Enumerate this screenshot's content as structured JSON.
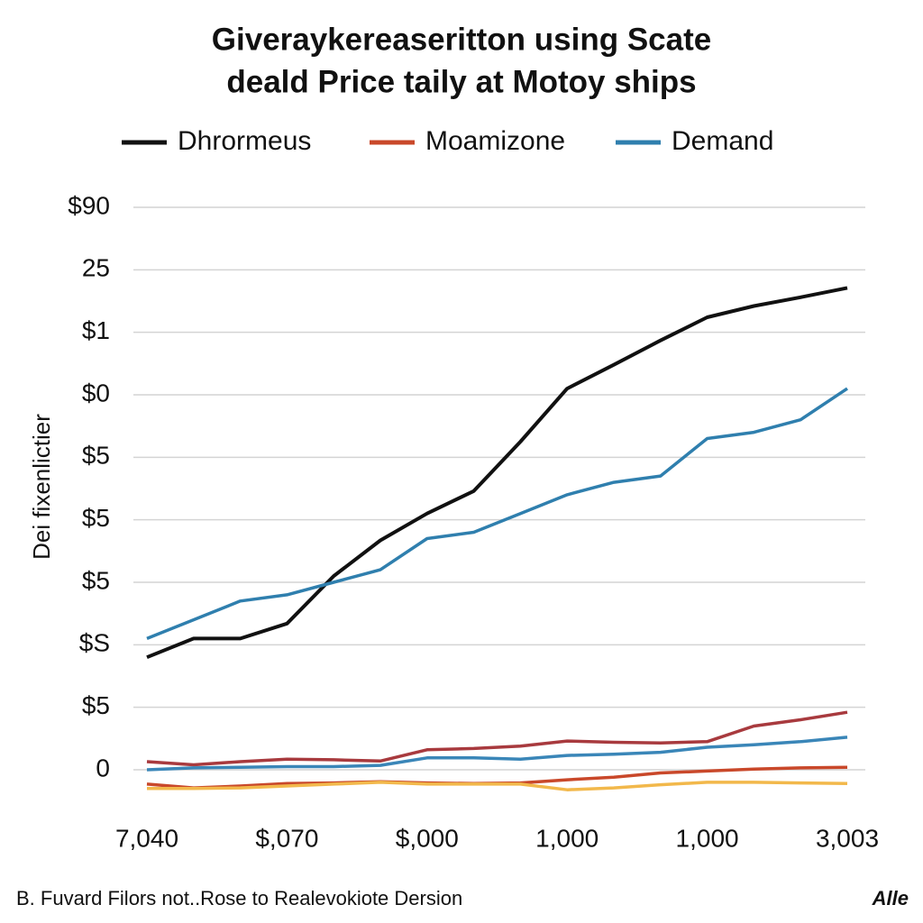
{
  "chart_data": {
    "type": "line",
    "title": [
      "Giveraykereaseritton using Scate",
      "deald Price taily at Motoy ships"
    ],
    "y_label": "Dei fixenlictier",
    "footer": "B. Fuvard Filors not..Rose to Realevokiote Dersion",
    "watermark": "Alle",
    "categories": [
      "7,040",
      null,
      null,
      "$,070",
      null,
      null,
      "$,000",
      null,
      null,
      "1,000",
      null,
      null,
      "1,000",
      null,
      null,
      "3,003"
    ],
    "series": [
      {
        "name": "Dhrormeus",
        "color": "#111111",
        "values": [
          18,
          21,
          21,
          23.4,
          31,
          36.7,
          41,
          44.6,
          52.5,
          61,
          64.8,
          68.7,
          72.4,
          74.2,
          75.6,
          77.1
        ]
      },
      {
        "name": "Moamizone",
        "color": "#c9482a",
        "values": [
          -2.3,
          -2.9,
          -2.6,
          -2.2,
          -2.1,
          -1.9,
          -2.1,
          -2.2,
          -2.1,
          -1.6,
          -1.2,
          -0.5,
          -0.2,
          0.1,
          0.3,
          0.4
        ]
      },
      {
        "name": "Demand",
        "color": "#2f7fae",
        "values": [
          21,
          24,
          27,
          28,
          30,
          32,
          37,
          38,
          41,
          44,
          46,
          47,
          53,
          54,
          56,
          61
        ]
      },
      {
        "color": "#a83a3e",
        "values": [
          1.3,
          0.8,
          1.3,
          1.7,
          1.6,
          1.4,
          3.2,
          3.4,
          3.8,
          4.6,
          4.4,
          4.3,
          4.5,
          7,
          8,
          9.2
        ]
      },
      {
        "color": "#3a86b8",
        "values": [
          0,
          0.3,
          0.4,
          0.5,
          0.5,
          0.7,
          1.9,
          1.9,
          1.7,
          2.3,
          2.5,
          2.8,
          3.6,
          4,
          4.5,
          5.2
        ]
      },
      {
        "color": "#f2b84b",
        "values": [
          -3,
          -3,
          -2.9,
          -2.6,
          -2.3,
          -2,
          -2.3,
          -2.3,
          -2.3,
          -3.2,
          -2.9,
          -2.4,
          -2,
          -2,
          -2.1,
          -2.2
        ]
      }
    ],
    "ylim": [
      -5,
      90
    ],
    "yticks": [
      0,
      {
        "value": 10,
        "label": "$5"
      },
      {
        "value": 20,
        "label": "$S"
      },
      {
        "value": 30,
        "label": "$5"
      },
      {
        "value": 40,
        "label": "$5"
      },
      {
        "value": 50,
        "label": "$5"
      },
      {
        "value": 60,
        "label": "$0"
      },
      {
        "value": 70,
        "label": "$1"
      },
      {
        "value": 80,
        "label": "25"
      },
      {
        "value": 90,
        "label": "$90"
      }
    ],
    "grid": true
  }
}
